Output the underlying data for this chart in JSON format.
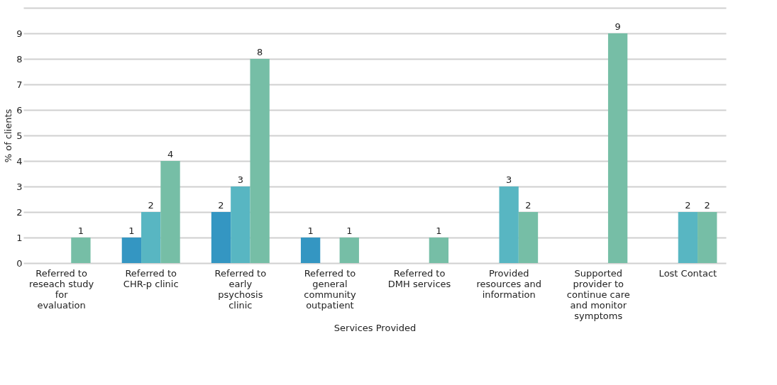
{
  "chart_data": {
    "type": "bar",
    "xlabel": "Services Provided",
    "ylabel": "% of clients",
    "categories": [
      "Referred to reseach study for evaluation",
      "Referred to CHR-p clinic",
      "Referred to early psychosis clinic",
      "Referred to general community outpatient",
      "Referred to DMH services",
      "Provided resources and information",
      "Supported provider to continue care and monitor symptoms",
      "Lost Contact"
    ],
    "series": [
      {
        "color": "#3496c2",
        "values": [
          null,
          1,
          2,
          1,
          null,
          null,
          null,
          null
        ]
      },
      {
        "color": "#58b6c2",
        "values": [
          null,
          2,
          3,
          null,
          null,
          3,
          null,
          2
        ]
      },
      {
        "color": "#76bea6",
        "values": [
          1,
          4,
          8,
          1,
          1,
          2,
          9,
          2
        ]
      }
    ],
    "ylim": [
      0,
      10
    ],
    "yticks": [
      0,
      1,
      2,
      3,
      4,
      5,
      6,
      7,
      8,
      9,
      {
        "value": 10,
        "label": null
      }
    ],
    "grid": "y",
    "data_labels": true,
    "legend": false
  }
}
